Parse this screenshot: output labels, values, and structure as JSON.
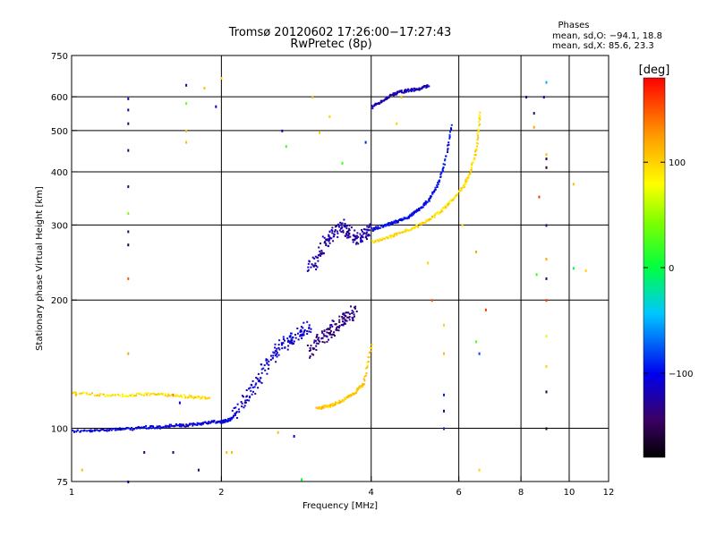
{
  "chart_data": {
    "type": "scatter",
    "title": "Tromsø 20120602 17:26:00−17:27:43",
    "subtitle": "RwPretec (8p)",
    "xlabel": "Frequency [MHz]",
    "ylabel": "Stationary phase Virtual Height [km]",
    "x_scale": "log",
    "y_scale": "log",
    "xlim": [
      1,
      12
    ],
    "ylim": [
      75,
      750
    ],
    "x_ticks": [
      1,
      2,
      4,
      6,
      8,
      10,
      12
    ],
    "x_grid": [
      2,
      4,
      6,
      8,
      10
    ],
    "y_ticks": [
      75,
      100,
      200,
      300,
      400,
      500,
      600,
      750
    ],
    "y_tick_labels": [
      "75",
      "100",
      "200",
      "300",
      "400",
      "500",
      "600",
      "750"
    ],
    "y_grid": [
      100,
      200,
      300,
      400,
      500,
      600
    ],
    "grid": true,
    "phases": {
      "title": "Phases",
      "line1": "mean, sd,O: −94.1, 18.8",
      "line2": "mean, sd,X: 85.6, 23.3"
    },
    "colorbar": {
      "label": "[deg]",
      "range": [
        -180,
        180
      ],
      "ticks": [
        100,
        0,
        -100
      ],
      "tick_labels": [
        "100",
        "0",
        "−100"
      ]
    },
    "traces": [
      {
        "name_hint": "E-region O trace",
        "phase": -105,
        "x": [
          1.0,
          1.1,
          1.2,
          1.3,
          1.4,
          1.5,
          1.6,
          1.7,
          1.8,
          1.9,
          2.0,
          2.05,
          2.1
        ],
        "y": [
          99,
          99,
          100,
          100,
          101,
          101,
          102,
          102,
          103,
          104,
          104,
          105,
          106
        ]
      },
      {
        "name_hint": "Es/E trace (X)",
        "phase": 95,
        "x": [
          1.0,
          1.15,
          1.3,
          1.45,
          1.6,
          1.75,
          1.9
        ],
        "y": [
          122,
          120,
          120,
          121,
          120,
          119,
          118
        ]
      },
      {
        "name_hint": "F1 spread O",
        "phase": -110,
        "x": [
          2.1,
          2.2,
          2.3,
          2.4,
          2.5,
          2.6,
          2.7,
          2.8,
          2.9,
          3.0
        ],
        "y": [
          108,
          115,
          125,
          135,
          145,
          155,
          160,
          165,
          170,
          175
        ]
      },
      {
        "name_hint": "F1 spread dark",
        "phase": -135,
        "x": [
          3.0,
          3.1,
          3.2,
          3.3,
          3.4,
          3.5,
          3.6,
          3.7
        ],
        "y": [
          150,
          160,
          165,
          170,
          175,
          180,
          185,
          190
        ]
      },
      {
        "name_hint": "F1 X trace",
        "phase": 105,
        "x": [
          3.1,
          3.25,
          3.4,
          3.55,
          3.7,
          3.85,
          4.0
        ],
        "y": [
          112,
          113,
          115,
          118,
          122,
          128,
          160
        ]
      },
      {
        "name_hint": "F2 spread O",
        "phase": -125,
        "x": [
          3.0,
          3.1,
          3.2,
          3.3,
          3.4,
          3.5,
          3.6,
          3.7,
          3.8,
          3.9,
          4.0
        ],
        "y": [
          240,
          250,
          270,
          285,
          295,
          300,
          290,
          280,
          285,
          290,
          295
        ]
      },
      {
        "name_hint": "F2 O trace",
        "phase": -100,
        "x": [
          4.0,
          4.2,
          4.4,
          4.6,
          4.8,
          5.0,
          5.2,
          5.4,
          5.6,
          5.8
        ],
        "y": [
          295,
          300,
          305,
          310,
          318,
          330,
          345,
          370,
          420,
          520
        ]
      },
      {
        "name_hint": "F2 X trace",
        "phase": 95,
        "x": [
          4.0,
          4.3,
          4.6,
          4.9,
          5.2,
          5.5,
          5.8,
          6.1,
          6.3,
          6.5,
          6.6
        ],
        "y": [
          275,
          282,
          290,
          298,
          310,
          325,
          345,
          370,
          400,
          460,
          560
        ]
      },
      {
        "name_hint": "upper F O",
        "phase": -120,
        "x": [
          4.0,
          4.2,
          4.4,
          4.6,
          4.8,
          5.0,
          5.2
        ],
        "y": [
          570,
          590,
          610,
          620,
          625,
          630,
          640
        ]
      }
    ],
    "scatter": [
      {
        "x": 1.3,
        "y": 595,
        "phase": -120
      },
      {
        "x": 1.3,
        "y": 560,
        "phase": -130
      },
      {
        "x": 1.3,
        "y": 520,
        "phase": -140
      },
      {
        "x": 1.3,
        "y": 450,
        "phase": -150
      },
      {
        "x": 1.3,
        "y": 370,
        "phase": -140
      },
      {
        "x": 1.3,
        "y": 320,
        "phase": 40
      },
      {
        "x": 1.3,
        "y": 290,
        "phase": -140
      },
      {
        "x": 1.3,
        "y": 270,
        "phase": -160
      },
      {
        "x": 1.3,
        "y": 225,
        "phase": 150
      },
      {
        "x": 1.3,
        "y": 150,
        "phase": 120
      },
      {
        "x": 1.3,
        "y": 75,
        "phase": -110
      },
      {
        "x": 1.7,
        "y": 640,
        "phase": -120
      },
      {
        "x": 1.7,
        "y": 580,
        "phase": 40
      },
      {
        "x": 1.7,
        "y": 500,
        "phase": 110
      },
      {
        "x": 1.7,
        "y": 470,
        "phase": 110
      },
      {
        "x": 1.85,
        "y": 630,
        "phase": 110
      },
      {
        "x": 1.95,
        "y": 570,
        "phase": -110
      },
      {
        "x": 2.0,
        "y": 665,
        "phase": 100
      },
      {
        "x": 2.65,
        "y": 500,
        "phase": -120
      },
      {
        "x": 2.7,
        "y": 460,
        "phase": 20
      },
      {
        "x": 3.05,
        "y": 600,
        "phase": 110
      },
      {
        "x": 3.15,
        "y": 495,
        "phase": 100
      },
      {
        "x": 3.3,
        "y": 540,
        "phase": 100
      },
      {
        "x": 3.5,
        "y": 420,
        "phase": 20
      },
      {
        "x": 3.9,
        "y": 470,
        "phase": -90
      },
      {
        "x": 4.5,
        "y": 520,
        "phase": 100
      },
      {
        "x": 4.6,
        "y": 600,
        "phase": 110
      },
      {
        "x": 5.2,
        "y": 245,
        "phase": 100
      },
      {
        "x": 5.3,
        "y": 200,
        "phase": 150
      },
      {
        "x": 5.6,
        "y": 175,
        "phase": 100
      },
      {
        "x": 5.6,
        "y": 150,
        "phase": 110
      },
      {
        "x": 5.6,
        "y": 120,
        "phase": -90
      },
      {
        "x": 5.6,
        "y": 110,
        "phase": -140
      },
      {
        "x": 5.6,
        "y": 100,
        "phase": -90
      },
      {
        "x": 6.1,
        "y": 300,
        "phase": 90
      },
      {
        "x": 6.5,
        "y": 260,
        "phase": 120
      },
      {
        "x": 6.5,
        "y": 160,
        "phase": 30
      },
      {
        "x": 6.6,
        "y": 150,
        "phase": -80
      },
      {
        "x": 6.6,
        "y": 80,
        "phase": 100
      },
      {
        "x": 6.8,
        "y": 190,
        "phase": 160
      },
      {
        "x": 8.2,
        "y": 600,
        "phase": -110
      },
      {
        "x": 8.5,
        "y": 550,
        "phase": -140
      },
      {
        "x": 8.5,
        "y": 510,
        "phase": 120
      },
      {
        "x": 8.6,
        "y": 230,
        "phase": 20
      },
      {
        "x": 8.7,
        "y": 350,
        "phase": 160
      },
      {
        "x": 8.9,
        "y": 600,
        "phase": -100
      },
      {
        "x": 9.0,
        "y": 650,
        "phase": -50
      },
      {
        "x": 9.0,
        "y": 440,
        "phase": 110
      },
      {
        "x": 9.0,
        "y": 430,
        "phase": -150
      },
      {
        "x": 9.0,
        "y": 410,
        "phase": -160
      },
      {
        "x": 9.0,
        "y": 300,
        "phase": -130
      },
      {
        "x": 9.0,
        "y": 250,
        "phase": 120
      },
      {
        "x": 9.0,
        "y": 225,
        "phase": -150
      },
      {
        "x": 9.0,
        "y": 200,
        "phase": 160
      },
      {
        "x": 9.0,
        "y": 165,
        "phase": 70
      },
      {
        "x": 9.0,
        "y": 140,
        "phase": 100
      },
      {
        "x": 9.0,
        "y": 122,
        "phase": -160
      },
      {
        "x": 9.0,
        "y": 100,
        "phase": -170
      },
      {
        "x": 10.2,
        "y": 375,
        "phase": 110
      },
      {
        "x": 10.2,
        "y": 238,
        "phase": -10
      },
      {
        "x": 10.8,
        "y": 235,
        "phase": 100
      },
      {
        "x": 2.05,
        "y": 88,
        "phase": 110
      },
      {
        "x": 2.1,
        "y": 88,
        "phase": 110
      },
      {
        "x": 2.9,
        "y": 76,
        "phase": 0
      },
      {
        "x": 1.4,
        "y": 88,
        "phase": -140
      },
      {
        "x": 1.6,
        "y": 88,
        "phase": -140
      },
      {
        "x": 1.8,
        "y": 80,
        "phase": -140
      },
      {
        "x": 1.6,
        "y": 120,
        "phase": 140
      },
      {
        "x": 1.65,
        "y": 115,
        "phase": -110
      },
      {
        "x": 1.02,
        "y": 120,
        "phase": 110
      },
      {
        "x": 1.05,
        "y": 80,
        "phase": 110
      },
      {
        "x": 2.6,
        "y": 98,
        "phase": 110
      },
      {
        "x": 2.8,
        "y": 96,
        "phase": -100
      }
    ]
  }
}
